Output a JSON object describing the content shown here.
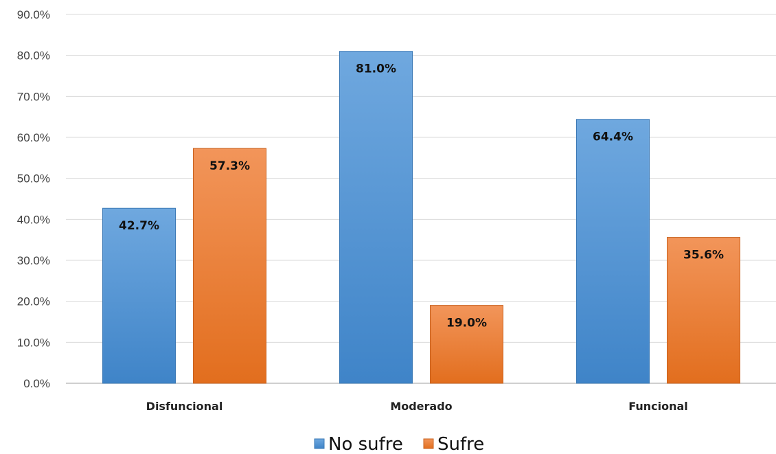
{
  "chart_data": {
    "type": "bar",
    "title": "",
    "xlabel": "",
    "ylabel": "",
    "categories": [
      "Disfuncional",
      "Moderado",
      "Funcional"
    ],
    "series": [
      {
        "name": "No sufre",
        "values": [
          42.7,
          81.0,
          64.4
        ],
        "labels": [
          "42.7%",
          "81.0%",
          "64.4%"
        ],
        "color": "#5b9bd5"
      },
      {
        "name": "Sufre",
        "values": [
          57.3,
          19.0,
          35.6
        ],
        "labels": [
          "57.3%",
          "19.0%",
          "35.6%"
        ],
        "color": "#ed7d31"
      }
    ],
    "ylim": [
      0,
      90
    ],
    "yticks": [
      0,
      10,
      20,
      30,
      40,
      50,
      60,
      70,
      80,
      90
    ],
    "ytick_labels": [
      "0.0%",
      "10.0%",
      "20.0%",
      "30.0%",
      "40.0%",
      "50.0%",
      "60.0%",
      "70.0%",
      "80.0%",
      "90.0%"
    ],
    "grid": true,
    "legend_position": "bottom"
  }
}
